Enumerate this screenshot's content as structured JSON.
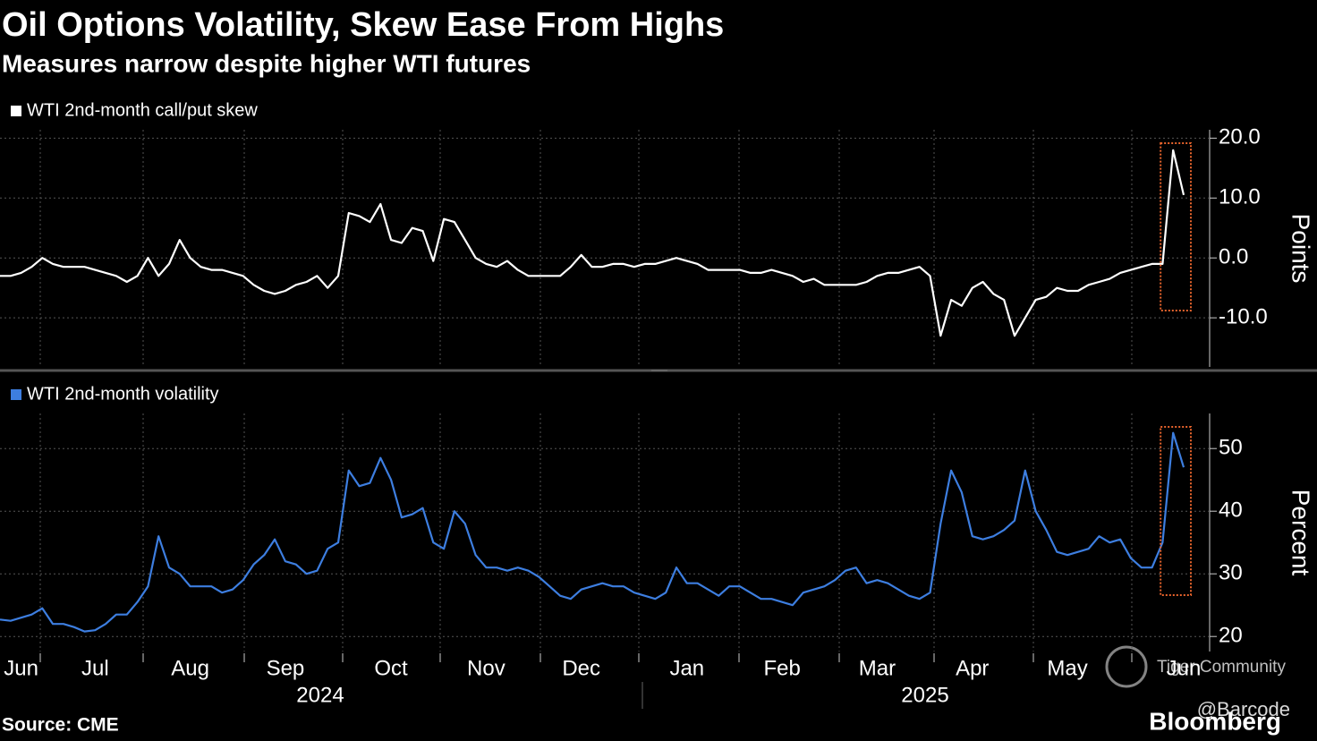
{
  "title": "Oil Options Volatility, Skew Ease From Highs",
  "subtitle": "Measures narrow despite higher WTI futures",
  "source": "Source: CME",
  "brand": "Bloomberg",
  "watermarks": [
    "Tiger Community",
    "@Barcode"
  ],
  "years": [
    "2024",
    "2025"
  ],
  "chart_data": [
    {
      "type": "line",
      "ylabel": "Points",
      "series": [
        {
          "name": "WTI 2nd-month call/put skew",
          "color": "#ffffff",
          "values": [
            -3,
            -3,
            -2.5,
            -1.5,
            0,
            -1,
            -1.5,
            -1.5,
            -1.5,
            -2,
            -2.5,
            -3,
            -4,
            -3,
            0,
            -3,
            -1,
            3,
            0,
            -1.5,
            -2,
            -2,
            -2.5,
            -3,
            -4.5,
            -5.5,
            -6,
            -5.5,
            -4.5,
            -4,
            -3,
            -5,
            -3,
            7.5,
            7,
            6,
            9,
            3,
            2.5,
            5,
            4.5,
            -0.5,
            6.5,
            6,
            3,
            0,
            -1,
            -1.5,
            -0.5,
            -2,
            -3,
            -3,
            -3,
            -3,
            -1.5,
            0.5,
            -1.5,
            -1.5,
            -1,
            -1,
            -1.5,
            -1,
            -1,
            -0.5,
            0,
            -0.5,
            -1,
            -2,
            -2,
            -2,
            -2,
            -2.5,
            -2.5,
            -2,
            -2.5,
            -3,
            -4,
            -3.5,
            -4.5,
            -4.5,
            -4.5,
            -4.5,
            -4,
            -3,
            -2.5,
            -2.5,
            -2,
            -1.5,
            -3,
            -13,
            -7,
            -8,
            -5,
            -4,
            -6,
            -7,
            -13,
            -10,
            -7,
            -6.5,
            -5,
            -5.5,
            -5.5,
            -4.5,
            -4,
            -3.5,
            -2.5,
            -2,
            -1.5,
            -1,
            -1,
            18,
            10.5
          ]
        }
      ],
      "ylim": [
        -18.2,
        21.4
      ],
      "yticks": [
        {
          "value": 20,
          "label": "20.0"
        },
        {
          "value": 10,
          "label": "10.0"
        },
        {
          "value": 0,
          "label": "0.0"
        },
        {
          "value": -10,
          "label": "-10.0"
        }
      ],
      "grid": true
    },
    {
      "type": "line",
      "ylabel": "Percent",
      "categories": [
        null,
        null,
        "Jun",
        null,
        null,
        null,
        null,
        null,
        null,
        "Jul",
        null,
        null,
        null,
        null,
        null,
        null,
        null,
        null,
        "Aug",
        null,
        null,
        null,
        null,
        null,
        null,
        null,
        null,
        "Sep",
        null,
        null,
        null,
        null,
        null,
        null,
        null,
        null,
        null,
        "Oct",
        null,
        null,
        null,
        null,
        null,
        null,
        null,
        null,
        "Nov",
        null,
        null,
        null,
        null,
        null,
        null,
        null,
        null,
        "Dec",
        null,
        null,
        null,
        null,
        null,
        null,
        null,
        null,
        null,
        "Jan",
        null,
        null,
        null,
        null,
        null,
        null,
        null,
        null,
        "Feb",
        null,
        null,
        null,
        null,
        null,
        null,
        null,
        null,
        "Mar",
        null,
        null,
        null,
        null,
        null,
        null,
        null,
        null,
        "Apr",
        null,
        null,
        null,
        null,
        null,
        null,
        null,
        null,
        "May",
        null,
        null,
        null,
        null,
        null,
        null,
        null,
        null,
        null,
        null,
        "Jun"
      ],
      "series": [
        {
          "name": "WTI 2nd-month volatility",
          "color": "#3d7ee0",
          "values": [
            22.7,
            22.5,
            23,
            23.5,
            24.5,
            22,
            22,
            21.5,
            20.8,
            21,
            22,
            23.5,
            23.5,
            25.5,
            28,
            36,
            31,
            30,
            28,
            28,
            28,
            27,
            27.5,
            29,
            31.5,
            33,
            35.5,
            32,
            31.5,
            30,
            30.5,
            34,
            35,
            46.5,
            44,
            44.5,
            48.5,
            45,
            39,
            39.5,
            40.5,
            35,
            34,
            40,
            38,
            33,
            31,
            31,
            30.5,
            31,
            30.5,
            29.5,
            28,
            26.5,
            26,
            27.5,
            28,
            28.5,
            28,
            28,
            27,
            26.5,
            26,
            27,
            31,
            28.5,
            28.5,
            27.5,
            26.5,
            28,
            28,
            27,
            26,
            26,
            25.5,
            25,
            27,
            27.5,
            28,
            29,
            30.5,
            31,
            28.5,
            29,
            28.5,
            27.5,
            26.5,
            26,
            27,
            38,
            46.5,
            43,
            36,
            35.5,
            36,
            37,
            38.5,
            46.5,
            40,
            37,
            33.5,
            33,
            33.5,
            34,
            36,
            35,
            35.5,
            32.5,
            31,
            31,
            35,
            52.5,
            47
          ]
        }
      ],
      "ylim": [
        17.6,
        55.6
      ],
      "yticks": [
        50,
        40,
        30,
        20
      ],
      "grid": true
    }
  ]
}
